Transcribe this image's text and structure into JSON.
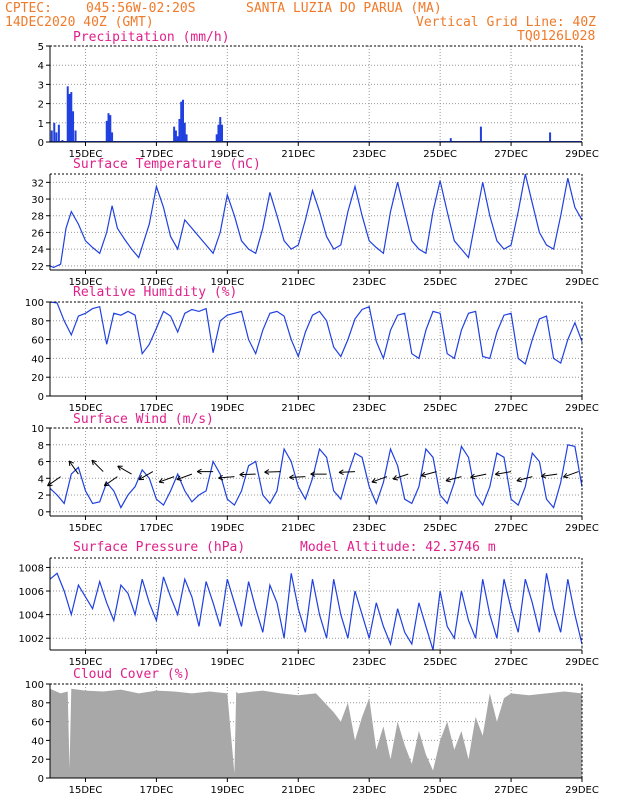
{
  "header": {
    "source": "CPTEC:",
    "coords": "045:56W-02:20S",
    "location": "SANTA LUZIA DO PARUA (MA)",
    "datetime": "14DEC2020 40Z (GMT)",
    "grid_note": "Vertical Grid Line: 40Z",
    "model_code": "TQ0126L028"
  },
  "colors": {
    "header": "#f07a2a",
    "panel_title": "#e0208a",
    "series": "#2040e0",
    "cloud": "#a8a8a8",
    "grid": "#999999"
  },
  "x_axis": {
    "ticks": [
      "15DEC",
      "17DEC",
      "19DEC",
      "21DEC",
      "23DEC",
      "25DEC",
      "27DEC",
      "29DEC"
    ],
    "tick_days": [
      15,
      17,
      19,
      21,
      23,
      25,
      27,
      29
    ],
    "range_days": [
      14.0,
      29.0
    ]
  },
  "chart_data": [
    {
      "type": "bar",
      "title": "Precipitation (mm/h)",
      "ylim": [
        0,
        5
      ],
      "yticks": [
        0,
        1,
        2,
        3,
        4,
        5
      ],
      "series": [
        {
          "x": [
            14.05,
            14.12,
            14.18,
            14.25,
            14.35,
            14.5,
            14.55,
            14.6,
            14.65,
            14.72,
            15.6,
            15.65,
            15.7,
            15.75,
            17.5,
            17.55,
            17.6,
            17.65,
            17.7,
            17.75,
            17.8,
            17.85,
            18.7,
            18.75,
            18.8,
            18.85,
            25.3,
            26.15,
            28.1
          ],
          "values": [
            0.6,
            1.0,
            0.5,
            0.9,
            0.1,
            2.9,
            2.5,
            2.6,
            1.6,
            0.6,
            1.1,
            1.5,
            1.4,
            0.5,
            0.8,
            0.6,
            0.3,
            1.2,
            2.1,
            2.2,
            1.0,
            0.4,
            0.4,
            0.9,
            1.3,
            0.9,
            0.2,
            0.8,
            0.5
          ]
        }
      ]
    },
    {
      "type": "line",
      "title": "Surface Temperature (nC)",
      "ylim": [
        21.5,
        33
      ],
      "yticks": [
        22,
        24,
        26,
        28,
        30,
        32
      ],
      "series": [
        {
          "x": [
            14.0,
            14.1,
            14.3,
            14.45,
            14.6,
            14.8,
            15.0,
            15.2,
            15.4,
            15.6,
            15.75,
            15.9,
            16.1,
            16.3,
            16.5,
            16.8,
            17.0,
            17.2,
            17.4,
            17.6,
            17.8,
            18.0,
            18.2,
            18.4,
            18.6,
            18.8,
            19.0,
            19.2,
            19.4,
            19.6,
            19.8,
            20.0,
            20.2,
            20.4,
            20.6,
            20.8,
            21.0,
            21.2,
            21.4,
            21.6,
            21.8,
            22.0,
            22.2,
            22.4,
            22.6,
            22.8,
            23.0,
            23.2,
            23.4,
            23.6,
            23.8,
            24.0,
            24.2,
            24.4,
            24.6,
            24.8,
            25.0,
            25.2,
            25.4,
            25.6,
            25.8,
            26.0,
            26.2,
            26.4,
            26.6,
            26.8,
            27.0,
            27.2,
            27.4,
            27.6,
            27.8,
            28.0,
            28.2,
            28.4,
            28.6,
            28.8,
            29.0
          ],
          "values": [
            22.0,
            21.8,
            22.2,
            26.5,
            28.5,
            27.0,
            25.0,
            24.2,
            23.5,
            26.0,
            29.2,
            26.5,
            25.2,
            24.0,
            23.0,
            27.0,
            31.5,
            29.0,
            25.5,
            24.0,
            27.5,
            26.5,
            25.5,
            24.5,
            23.5,
            26.0,
            30.5,
            28.0,
            25.0,
            24.0,
            23.5,
            26.5,
            30.8,
            28.0,
            25.0,
            24.0,
            24.5,
            27.5,
            31.0,
            28.5,
            25.5,
            24.0,
            24.5,
            28.5,
            31.5,
            28.0,
            25.0,
            24.2,
            23.5,
            28.5,
            32.0,
            28.5,
            25.0,
            24.0,
            23.5,
            28.5,
            32.2,
            28.5,
            25.0,
            24.0,
            23.0,
            27.5,
            32.0,
            28.0,
            25.0,
            24.0,
            24.5,
            28.5,
            33.0,
            29.5,
            26.0,
            24.5,
            24.0,
            28.0,
            32.5,
            29.0,
            27.5
          ]
        }
      ]
    },
    {
      "type": "line",
      "title": "Relative Humidity (%)",
      "ylim": [
        0,
        100
      ],
      "yticks": [
        0,
        20,
        40,
        60,
        80,
        100
      ],
      "series": [
        {
          "x": [
            14.0,
            14.2,
            14.4,
            14.6,
            14.8,
            15.0,
            15.2,
            15.4,
            15.6,
            15.8,
            16.0,
            16.2,
            16.4,
            16.6,
            16.8,
            17.0,
            17.2,
            17.4,
            17.6,
            17.8,
            18.0,
            18.2,
            18.4,
            18.6,
            18.8,
            19.0,
            19.2,
            19.4,
            19.6,
            19.8,
            20.0,
            20.2,
            20.4,
            20.6,
            20.8,
            21.0,
            21.2,
            21.4,
            21.6,
            21.8,
            22.0,
            22.2,
            22.4,
            22.6,
            22.8,
            23.0,
            23.2,
            23.4,
            23.6,
            23.8,
            24.0,
            24.2,
            24.4,
            24.6,
            24.8,
            25.0,
            25.2,
            25.4,
            25.6,
            25.8,
            26.0,
            26.2,
            26.4,
            26.6,
            26.8,
            27.0,
            27.2,
            27.4,
            27.6,
            27.8,
            28.0,
            28.2,
            28.4,
            28.6,
            28.8,
            29.0
          ],
          "values": [
            100,
            99,
            80,
            65,
            85,
            88,
            93,
            95,
            55,
            88,
            86,
            90,
            86,
            45,
            55,
            72,
            90,
            85,
            68,
            88,
            92,
            90,
            93,
            46,
            80,
            86,
            88,
            90,
            60,
            45,
            70,
            88,
            90,
            85,
            60,
            42,
            68,
            86,
            90,
            80,
            52,
            42,
            60,
            82,
            92,
            95,
            58,
            40,
            70,
            86,
            88,
            45,
            40,
            70,
            90,
            88,
            45,
            40,
            70,
            88,
            90,
            42,
            40,
            68,
            86,
            88,
            40,
            34,
            60,
            82,
            85,
            40,
            35,
            60,
            78,
            58
          ]
        }
      ]
    },
    {
      "type": "line",
      "title": "Surface Wind (m/s)",
      "ylim": [
        -0.5,
        10
      ],
      "yticks": [
        0,
        2,
        4,
        6,
        8,
        10
      ],
      "series": [
        {
          "x": [
            14.0,
            14.2,
            14.4,
            14.6,
            14.8,
            15.0,
            15.2,
            15.4,
            15.6,
            15.8,
            16.0,
            16.2,
            16.4,
            16.6,
            16.8,
            17.0,
            17.2,
            17.4,
            17.6,
            17.8,
            18.0,
            18.2,
            18.4,
            18.6,
            18.8,
            19.0,
            19.2,
            19.4,
            19.6,
            19.8,
            20.0,
            20.2,
            20.4,
            20.6,
            20.8,
            21.0,
            21.2,
            21.4,
            21.6,
            21.8,
            22.0,
            22.2,
            22.4,
            22.6,
            22.8,
            23.0,
            23.2,
            23.4,
            23.6,
            23.8,
            24.0,
            24.2,
            24.4,
            24.6,
            24.8,
            25.0,
            25.2,
            25.4,
            25.6,
            25.8,
            26.0,
            26.2,
            26.4,
            26.6,
            26.8,
            27.0,
            27.2,
            27.4,
            27.6,
            27.8,
            28.0,
            28.2,
            28.4,
            28.6,
            28.8,
            29.0
          ],
          "values": [
            2.8,
            2.0,
            1.0,
            4.5,
            5.3,
            2.5,
            1.0,
            1.2,
            3.5,
            2.5,
            0.5,
            2.0,
            3.0,
            5.0,
            4.0,
            1.5,
            0.8,
            2.5,
            4.5,
            2.5,
            1.2,
            2.0,
            2.5,
            6.0,
            4.5,
            1.5,
            0.8,
            2.5,
            5.5,
            6.0,
            2.0,
            1.0,
            2.5,
            7.5,
            6.0,
            3.0,
            1.5,
            4.0,
            7.5,
            6.5,
            2.5,
            1.5,
            4.5,
            7.0,
            6.5,
            3.0,
            1.0,
            3.5,
            7.5,
            5.5,
            1.5,
            1.0,
            3.0,
            7.5,
            6.5,
            2.0,
            1.0,
            3.5,
            7.8,
            6.5,
            2.0,
            0.8,
            3.0,
            7.0,
            6.5,
            1.5,
            0.8,
            3.0,
            7.0,
            6.0,
            1.5,
            0.5,
            3.5,
            8.0,
            7.8,
            3.0
          ]
        }
      ]
    },
    {
      "type": "line",
      "title": "Surface Pressure (hPa)",
      "annotation": "Model Altitude: 42.3746 m",
      "ylim": [
        1001,
        1008.8
      ],
      "yticks": [
        1002,
        1004,
        1006,
        1008
      ],
      "series": [
        {
          "x": [
            14.0,
            14.2,
            14.4,
            14.6,
            14.8,
            15.0,
            15.2,
            15.4,
            15.6,
            15.8,
            16.0,
            16.2,
            16.4,
            16.6,
            16.8,
            17.0,
            17.2,
            17.4,
            17.6,
            17.8,
            18.0,
            18.2,
            18.4,
            18.6,
            18.8,
            19.0,
            19.2,
            19.4,
            19.6,
            19.8,
            20.0,
            20.2,
            20.4,
            20.6,
            20.8,
            21.0,
            21.2,
            21.4,
            21.6,
            21.8,
            22.0,
            22.2,
            22.4,
            22.6,
            22.8,
            23.0,
            23.2,
            23.4,
            23.6,
            23.8,
            24.0,
            24.2,
            24.4,
            24.6,
            24.8,
            25.0,
            25.2,
            25.4,
            25.6,
            25.8,
            26.0,
            26.2,
            26.4,
            26.6,
            26.8,
            27.0,
            27.2,
            27.4,
            27.6,
            27.8,
            28.0,
            28.2,
            28.4,
            28.6,
            28.8,
            29.0
          ],
          "values": [
            1007.0,
            1007.5,
            1006.0,
            1004.0,
            1006.5,
            1005.5,
            1004.5,
            1006.8,
            1005.0,
            1003.5,
            1006.5,
            1005.8,
            1004.0,
            1007.0,
            1005.0,
            1003.5,
            1007.2,
            1005.5,
            1004.0,
            1007.0,
            1005.5,
            1003.0,
            1006.8,
            1005.0,
            1003.0,
            1007.0,
            1005.0,
            1003.0,
            1006.8,
            1004.5,
            1002.5,
            1006.5,
            1005.0,
            1002.0,
            1007.5,
            1004.5,
            1002.5,
            1007.0,
            1004.0,
            1002.0,
            1007.0,
            1004.0,
            1002.0,
            1006.0,
            1004.0,
            1002.0,
            1005.0,
            1003.0,
            1001.5,
            1004.5,
            1002.5,
            1001.5,
            1005.0,
            1003.0,
            1001.0,
            1006.0,
            1003.0,
            1002.0,
            1006.0,
            1003.5,
            1002.0,
            1007.0,
            1004.0,
            1002.0,
            1007.0,
            1004.5,
            1002.5,
            1007.0,
            1005.0,
            1002.5,
            1007.5,
            1004.5,
            1002.5,
            1007.0,
            1004.0,
            1001.5
          ]
        }
      ]
    },
    {
      "type": "area",
      "title": "Cloud Cover (%)",
      "ylim": [
        0,
        100
      ],
      "yticks": [
        0,
        20,
        40,
        60,
        80,
        100
      ],
      "series": [
        {
          "x": [
            14.0,
            14.3,
            14.5,
            14.55,
            14.6,
            15.0,
            15.5,
            16.0,
            16.5,
            17.0,
            17.5,
            18.0,
            18.5,
            19.0,
            19.2,
            19.25,
            19.3,
            19.5,
            20.0,
            20.5,
            21.0,
            21.5,
            22.0,
            22.2,
            22.4,
            22.6,
            22.8,
            23.0,
            23.2,
            23.4,
            23.6,
            23.8,
            24.0,
            24.2,
            24.4,
            24.6,
            24.8,
            25.0,
            25.2,
            25.4,
            25.6,
            25.8,
            26.0,
            26.2,
            26.4,
            26.6,
            26.8,
            27.0,
            27.5,
            28.0,
            28.5,
            29.0
          ],
          "values": [
            95,
            90,
            92,
            10,
            95,
            93,
            92,
            94,
            90,
            93,
            92,
            90,
            92,
            90,
            5,
            92,
            90,
            91,
            93,
            90,
            88,
            90,
            70,
            60,
            80,
            40,
            65,
            85,
            30,
            55,
            20,
            60,
            35,
            15,
            50,
            25,
            8,
            40,
            60,
            30,
            50,
            20,
            65,
            45,
            90,
            60,
            85,
            90,
            88,
            90,
            92,
            90
          ]
        }
      ]
    }
  ]
}
